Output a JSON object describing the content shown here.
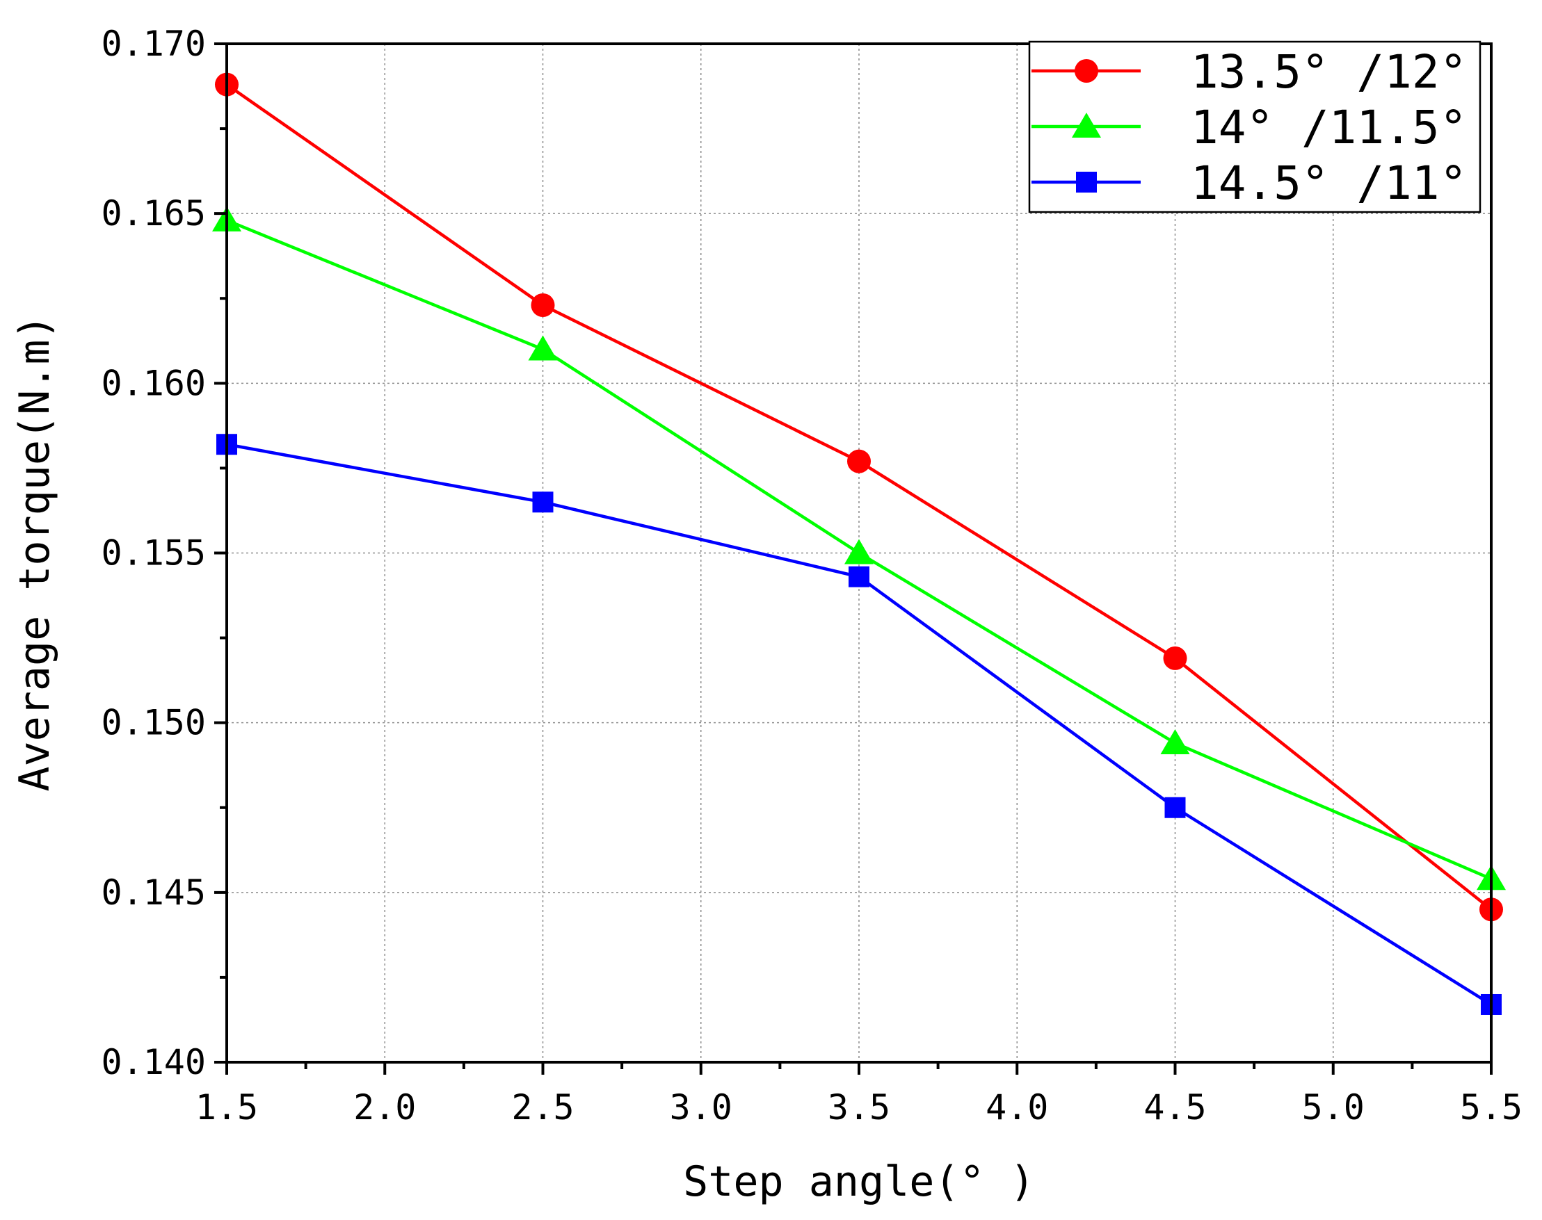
{
  "chart_data": {
    "type": "line",
    "xlabel": "Step angle(° )",
    "ylabel": "Average torque(N.m)",
    "xlim": [
      1.5,
      5.5
    ],
    "ylim": [
      0.14,
      0.17
    ],
    "x_ticks": [
      "1.5",
      "2.0",
      "2.5",
      "3.0",
      "3.5",
      "4.0",
      "4.5",
      "5.0",
      "5.5"
    ],
    "y_ticks": [
      "0.140",
      "0.145",
      "0.150",
      "0.155",
      "0.160",
      "0.165",
      "0.170"
    ],
    "grid": true,
    "legend_position": "top-right",
    "x": [
      1.5,
      2.5,
      3.5,
      4.5,
      5.5
    ],
    "series": [
      {
        "name": "13.5° /12°",
        "color": "#ff0000",
        "marker": "circle",
        "values": [
          0.1688,
          0.1623,
          0.1577,
          0.1519,
          0.1445
        ]
      },
      {
        "name": "14° /11.5°",
        "color": "#00ff00",
        "marker": "triangle",
        "values": [
          0.1648,
          0.161,
          0.155,
          0.1494,
          0.1454
        ]
      },
      {
        "name": "14.5° /11°",
        "color": "#0000ff",
        "marker": "square",
        "values": [
          0.1582,
          0.1565,
          0.1543,
          0.1475,
          0.1417
        ]
      }
    ]
  }
}
